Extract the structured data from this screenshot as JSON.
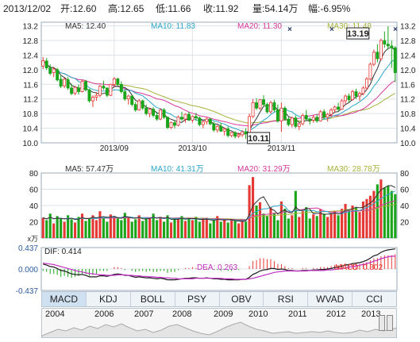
{
  "header": {
    "date": "2013/12/02",
    "open": "开:12.60",
    "high": "高:12.65",
    "low": "低:11.66",
    "close": "收:11.92",
    "volume": "量:54.14万",
    "change": "幅:-6.95%"
  },
  "tabs": [
    "MACD",
    "KDJ",
    "BOLL",
    "PSY",
    "OBV",
    "RSI",
    "WVAD",
    "CCI"
  ],
  "active_tab": "MACD",
  "timeline_years": [
    "2004",
    "2006",
    "2007",
    "2008",
    "2009",
    "2010",
    "2011",
    "2012",
    "2013"
  ],
  "colors": {
    "up": "#e53935",
    "down": "#1aa51a",
    "ma5": "#333333",
    "ma10": "#2ba6c8",
    "ma20": "#d6399b",
    "ma30": "#a7b23a",
    "dif": "#1a1a1a",
    "dea": "#c22fc2",
    "frame": "#9aa9b8",
    "grid": "#dde3ea"
  },
  "chart_data": [
    {
      "type": "candlestick",
      "panel": "price",
      "legend": [
        {
          "label": "MA5: 12.40",
          "color": "ma5"
        },
        {
          "label": "MA10: 11.83",
          "color": "ma10"
        },
        {
          "label": "MA20: 11.30",
          "color": "ma20"
        },
        {
          "label": "MA30: 11.48",
          "color": "ma30"
        }
      ],
      "ylim": [
        10.0,
        13.3
      ],
      "yticks": [
        "13.2",
        "12.8",
        "12.4",
        "12.0",
        "11.6",
        "11.2",
        "10.8",
        "10.4",
        "10.0"
      ],
      "xticks": [
        {
          "index": 20,
          "label": "2013/09"
        },
        {
          "index": 42,
          "label": "2013/10"
        },
        {
          "index": 67,
          "label": "2013/11"
        }
      ],
      "annotations": [
        {
          "label": "13.19",
          "index": 97,
          "value": 13.19
        },
        {
          "label": "10.11",
          "index": 57,
          "value": 10.11
        }
      ],
      "ohlc": [
        [
          12.1,
          12.35,
          12.02,
          12.25
        ],
        [
          12.24,
          12.32,
          12.0,
          12.05
        ],
        [
          12.05,
          12.15,
          11.85,
          11.9
        ],
        [
          11.92,
          12.08,
          11.8,
          12.02
        ],
        [
          12.0,
          12.05,
          11.68,
          11.72
        ],
        [
          11.74,
          11.85,
          11.5,
          11.55
        ],
        [
          11.56,
          11.78,
          11.5,
          11.74
        ],
        [
          11.73,
          11.8,
          11.45,
          11.5
        ],
        [
          11.5,
          11.62,
          11.3,
          11.35
        ],
        [
          11.36,
          11.55,
          11.3,
          11.52
        ],
        [
          11.5,
          11.6,
          11.32,
          11.4
        ],
        [
          11.4,
          11.72,
          11.38,
          11.68
        ],
        [
          11.68,
          11.72,
          11.4,
          11.45
        ],
        [
          11.45,
          11.48,
          11.1,
          11.15
        ],
        [
          11.15,
          11.3,
          10.98,
          11.25
        ],
        [
          11.25,
          11.38,
          11.15,
          11.3
        ],
        [
          11.3,
          11.58,
          11.25,
          11.55
        ],
        [
          11.55,
          11.7,
          11.45,
          11.5
        ],
        [
          11.5,
          11.52,
          11.25,
          11.3
        ],
        [
          11.3,
          11.62,
          11.28,
          11.6
        ],
        [
          11.6,
          11.8,
          11.55,
          11.75
        ],
        [
          11.75,
          11.78,
          11.55,
          11.6
        ],
        [
          11.6,
          11.68,
          11.35,
          11.4
        ],
        [
          11.4,
          11.45,
          11.15,
          11.2
        ],
        [
          11.2,
          11.32,
          11.05,
          11.28
        ],
        [
          11.28,
          11.3,
          11.0,
          11.05
        ],
        [
          11.05,
          11.12,
          10.85,
          10.9
        ],
        [
          10.9,
          11.2,
          10.88,
          11.15
        ],
        [
          11.15,
          11.18,
          10.9,
          10.95
        ],
        [
          10.95,
          11.05,
          10.75,
          10.8
        ],
        [
          10.8,
          10.95,
          10.7,
          10.92
        ],
        [
          10.92,
          10.98,
          10.7,
          10.75
        ],
        [
          10.75,
          10.85,
          10.6,
          10.65
        ],
        [
          10.65,
          10.95,
          10.62,
          10.9
        ],
        [
          10.9,
          10.95,
          10.65,
          10.7
        ],
        [
          10.7,
          10.72,
          10.38,
          10.42
        ],
        [
          10.42,
          10.58,
          10.38,
          10.55
        ],
        [
          10.55,
          10.62,
          10.4,
          10.48
        ],
        [
          10.48,
          10.75,
          10.45,
          10.7
        ],
        [
          10.7,
          10.85,
          10.6,
          10.65
        ],
        [
          10.65,
          10.8,
          10.55,
          10.78
        ],
        [
          10.78,
          10.85,
          10.6,
          10.62
        ],
        [
          10.62,
          10.75,
          10.55,
          10.72
        ],
        [
          10.72,
          10.82,
          10.6,
          10.68
        ],
        [
          10.68,
          10.72,
          10.45,
          10.5
        ],
        [
          10.5,
          10.62,
          10.4,
          10.58
        ],
        [
          10.58,
          10.7,
          10.5,
          10.65
        ],
        [
          10.65,
          10.68,
          10.48,
          10.52
        ],
        [
          10.52,
          10.58,
          10.3,
          10.35
        ],
        [
          10.35,
          10.48,
          10.28,
          10.45
        ],
        [
          10.45,
          10.55,
          10.3,
          10.32
        ],
        [
          10.32,
          10.42,
          10.2,
          10.38
        ],
        [
          10.38,
          10.45,
          10.15,
          10.2
        ],
        [
          10.2,
          10.3,
          10.15,
          10.28
        ],
        [
          10.28,
          10.32,
          10.12,
          10.18
        ],
        [
          10.18,
          10.28,
          10.13,
          10.22
        ],
        [
          10.22,
          10.35,
          10.16,
          10.3
        ],
        [
          10.3,
          10.4,
          10.11,
          10.25
        ],
        [
          10.25,
          10.8,
          10.22,
          10.72
        ],
        [
          10.72,
          11.2,
          10.68,
          11.1
        ],
        [
          11.1,
          11.22,
          10.9,
          10.95
        ],
        [
          10.95,
          11.2,
          10.9,
          11.18
        ],
        [
          11.18,
          11.3,
          10.98,
          11.05
        ],
        [
          11.05,
          11.1,
          10.8,
          10.85
        ],
        [
          10.85,
          11.15,
          10.8,
          11.1
        ],
        [
          11.1,
          11.18,
          10.85,
          10.9
        ],
        [
          10.9,
          11.05,
          10.55,
          10.6
        ],
        [
          10.6,
          11.1,
          10.3,
          10.95
        ],
        [
          10.95,
          11.0,
          10.6,
          10.65
        ],
        [
          10.65,
          10.7,
          10.45,
          10.5
        ],
        [
          10.5,
          10.72,
          10.42,
          10.68
        ],
        [
          10.68,
          10.75,
          10.4,
          10.45
        ],
        [
          10.45,
          10.55,
          10.35,
          10.52
        ],
        [
          10.52,
          10.8,
          10.48,
          10.75
        ],
        [
          10.75,
          10.9,
          10.6,
          10.65
        ],
        [
          10.65,
          10.7,
          10.5,
          10.62
        ],
        [
          10.62,
          10.75,
          10.55,
          10.7
        ],
        [
          10.7,
          10.78,
          10.55,
          10.6
        ],
        [
          10.6,
          10.9,
          10.58,
          10.85
        ],
        [
          10.85,
          10.92,
          10.65,
          10.7
        ],
        [
          10.7,
          10.82,
          10.58,
          10.78
        ],
        [
          10.78,
          10.95,
          10.7,
          10.9
        ],
        [
          10.9,
          11.02,
          10.82,
          10.98
        ],
        [
          10.98,
          11.1,
          10.85,
          10.92
        ],
        [
          10.92,
          11.2,
          10.9,
          11.15
        ],
        [
          11.15,
          11.32,
          11.05,
          11.28
        ],
        [
          11.28,
          11.35,
          11.1,
          11.18
        ],
        [
          11.18,
          11.45,
          11.15,
          11.4
        ],
        [
          11.4,
          11.48,
          11.2,
          11.28
        ],
        [
          11.28,
          11.4,
          11.15,
          11.35
        ],
        [
          11.35,
          11.55,
          11.3,
          11.5
        ],
        [
          11.5,
          11.8,
          11.45,
          11.75
        ],
        [
          11.75,
          12.2,
          11.7,
          12.15
        ],
        [
          12.15,
          12.55,
          12.1,
          12.48
        ],
        [
          12.48,
          12.7,
          12.2,
          12.3
        ],
        [
          12.3,
          12.85,
          12.25,
          12.8
        ],
        [
          12.8,
          13.05,
          12.6,
          12.7
        ],
        [
          12.7,
          13.19,
          12.55,
          12.65
        ],
        [
          12.65,
          12.8,
          12.05,
          12.6
        ],
        [
          12.6,
          12.65,
          11.66,
          11.92
        ]
      ]
    },
    {
      "type": "bar",
      "panel": "volume",
      "unit": "万",
      "legend": [
        {
          "label": "MA5: 57.47万",
          "color": "ma5"
        },
        {
          "label": "MA10: 41.31万",
          "color": "ma10"
        },
        {
          "label": "MA20: 31.29万",
          "color": "ma20"
        },
        {
          "label": "MA30: 28.78万",
          "color": "ma30"
        }
      ],
      "ylim": [
        0,
        80
      ],
      "yticks": [
        "80",
        "60",
        "40",
        "20"
      ],
      "x_unit_label": "x万",
      "values": [
        25,
        22,
        30,
        18,
        27,
        24,
        20,
        28,
        23,
        19,
        26,
        30,
        21,
        24,
        28,
        22,
        33,
        25,
        20,
        29,
        27,
        24,
        22,
        31,
        26,
        20,
        23,
        28,
        21,
        25,
        24,
        30,
        22,
        26,
        20,
        28,
        19,
        23,
        25,
        27,
        21,
        24,
        22,
        26,
        20,
        23,
        25,
        18,
        22,
        27,
        20,
        24,
        19,
        23,
        21,
        18,
        22,
        20,
        65,
        75,
        40,
        44,
        30,
        27,
        38,
        31,
        22,
        45,
        36,
        24,
        28,
        58,
        26,
        33,
        38,
        24,
        29,
        27,
        35,
        30,
        26,
        31,
        33,
        28,
        36,
        42,
        34,
        40,
        38,
        32,
        45,
        48,
        52,
        58,
        66,
        72,
        62,
        64,
        58,
        54
      ]
    },
    {
      "type": "bar",
      "panel": "macd",
      "legend": [
        {
          "label": "DIF: 0.414",
          "color": "dif"
        },
        {
          "label": "DEA: 0.263",
          "color": "dea"
        },
        {
          "label": "MACD: 0.302",
          "color": "up"
        }
      ],
      "ylim": [
        -0.437,
        0.437
      ],
      "yticks": [
        "0.437",
        "0.000",
        "-0.437"
      ],
      "dif": [
        0.1,
        0.08,
        0.05,
        0.04,
        0.01,
        -0.03,
        -0.04,
        -0.07,
        -0.1,
        -0.11,
        -0.12,
        -0.11,
        -0.13,
        -0.16,
        -0.16,
        -0.16,
        -0.14,
        -0.14,
        -0.15,
        -0.13,
        -0.11,
        -0.1,
        -0.11,
        -0.13,
        -0.13,
        -0.15,
        -0.17,
        -0.16,
        -0.17,
        -0.18,
        -0.18,
        -0.19,
        -0.2,
        -0.19,
        -0.2,
        -0.22,
        -0.22,
        -0.22,
        -0.21,
        -0.2,
        -0.19,
        -0.19,
        -0.18,
        -0.18,
        -0.19,
        -0.19,
        -0.18,
        -0.19,
        -0.2,
        -0.2,
        -0.21,
        -0.21,
        -0.22,
        -0.22,
        -0.22,
        -0.22,
        -0.21,
        -0.21,
        -0.17,
        -0.11,
        -0.08,
        -0.04,
        -0.02,
        -0.01,
        0.01,
        0.01,
        -0.01,
        0.0,
        -0.01,
        -0.03,
        -0.03,
        -0.04,
        -0.04,
        -0.03,
        -0.03,
        -0.03,
        -0.02,
        -0.02,
        -0.01,
        -0.01,
        0.0,
        0.01,
        0.03,
        0.04,
        0.06,
        0.08,
        0.09,
        0.11,
        0.12,
        0.13,
        0.15,
        0.18,
        0.22,
        0.27,
        0.29,
        0.34,
        0.37,
        0.39,
        0.4,
        0.41
      ],
      "dea": [
        0.12,
        0.11,
        0.1,
        0.09,
        0.07,
        0.05,
        0.03,
        0.01,
        -0.01,
        -0.03,
        -0.05,
        -0.06,
        -0.08,
        -0.09,
        -0.1,
        -0.11,
        -0.12,
        -0.12,
        -0.13,
        -0.13,
        -0.13,
        -0.12,
        -0.12,
        -0.12,
        -0.13,
        -0.13,
        -0.14,
        -0.14,
        -0.15,
        -0.15,
        -0.16,
        -0.16,
        -0.17,
        -0.17,
        -0.18,
        -0.18,
        -0.19,
        -0.19,
        -0.2,
        -0.2,
        -0.2,
        -0.2,
        -0.2,
        -0.19,
        -0.19,
        -0.19,
        -0.19,
        -0.19,
        -0.19,
        -0.19,
        -0.19,
        -0.2,
        -0.2,
        -0.2,
        -0.21,
        -0.21,
        -0.21,
        -0.21,
        -0.2,
        -0.19,
        -0.17,
        -0.15,
        -0.13,
        -0.11,
        -0.09,
        -0.07,
        -0.06,
        -0.05,
        -0.04,
        -0.04,
        -0.04,
        -0.04,
        -0.04,
        -0.04,
        -0.04,
        -0.03,
        -0.03,
        -0.03,
        -0.03,
        -0.03,
        -0.02,
        -0.02,
        -0.01,
        0.0,
        0.01,
        0.02,
        0.04,
        0.05,
        0.06,
        0.08,
        0.09,
        0.11,
        0.13,
        0.16,
        0.18,
        0.21,
        0.23,
        0.25,
        0.26,
        0.26
      ]
    }
  ]
}
